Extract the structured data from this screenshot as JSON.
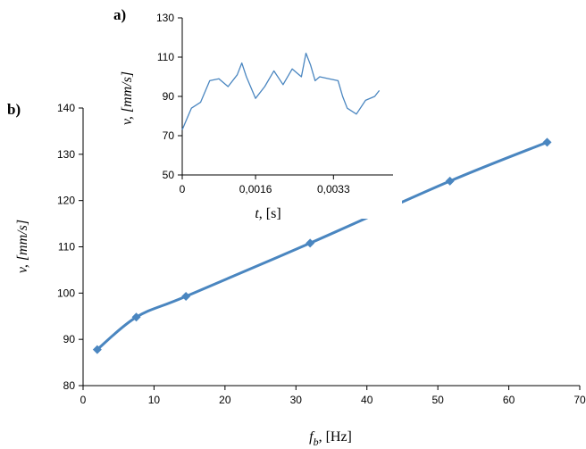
{
  "chart_data": [
    {
      "panel_label": "b)",
      "type": "line",
      "x": [
        2,
        7.5,
        14.5,
        32,
        51.7,
        65.4
      ],
      "y": [
        87.8,
        94.8,
        99.3,
        110.8,
        124.2,
        132.6
      ],
      "xlim": [
        0,
        70
      ],
      "ylim": [
        80,
        140
      ],
      "xticks": [
        "0",
        "10",
        "20",
        "30",
        "40",
        "50",
        "60",
        "70"
      ],
      "yticks": [
        "80",
        "90",
        "100",
        "110",
        "120",
        "130",
        "140"
      ],
      "xlabel_symbol": "f",
      "xlabel_sub": "b",
      "xlabel_unit": ", [Hz]",
      "ylabel": "v, [mm/s]",
      "grid": false,
      "color": "#4a86c0"
    },
    {
      "panel_label": "a)",
      "type": "line",
      "xlim": [
        0,
        0.0046
      ],
      "ylim": [
        50,
        130
      ],
      "xticks": [
        "0",
        "0,0016",
        "0,0033"
      ],
      "yticks": [
        "50",
        "70",
        "90",
        "110",
        "130"
      ],
      "xlabel_symbol": "t",
      "xlabel_unit": ", [s]",
      "ylabel": "v, [mm/s]",
      "grid": false,
      "color": "#4a86c0",
      "x": [
        0,
        0.0002,
        0.0004,
        0.0006,
        0.0008,
        0.001,
        0.0012,
        0.0013,
        0.0014,
        0.0016,
        0.0018,
        0.002,
        0.0022,
        0.0024,
        0.0026,
        0.0027,
        0.0028,
        0.0029,
        0.003,
        0.0032,
        0.0034,
        0.0035,
        0.0036,
        0.0038,
        0.004,
        0.0042,
        0.0043
      ],
      "y": [
        73,
        84,
        87,
        98,
        99,
        95,
        101,
        107,
        100,
        89,
        95,
        103,
        96,
        104,
        100,
        112,
        106,
        98,
        100,
        99,
        98,
        90,
        84,
        81,
        88,
        90,
        93
      ]
    }
  ]
}
